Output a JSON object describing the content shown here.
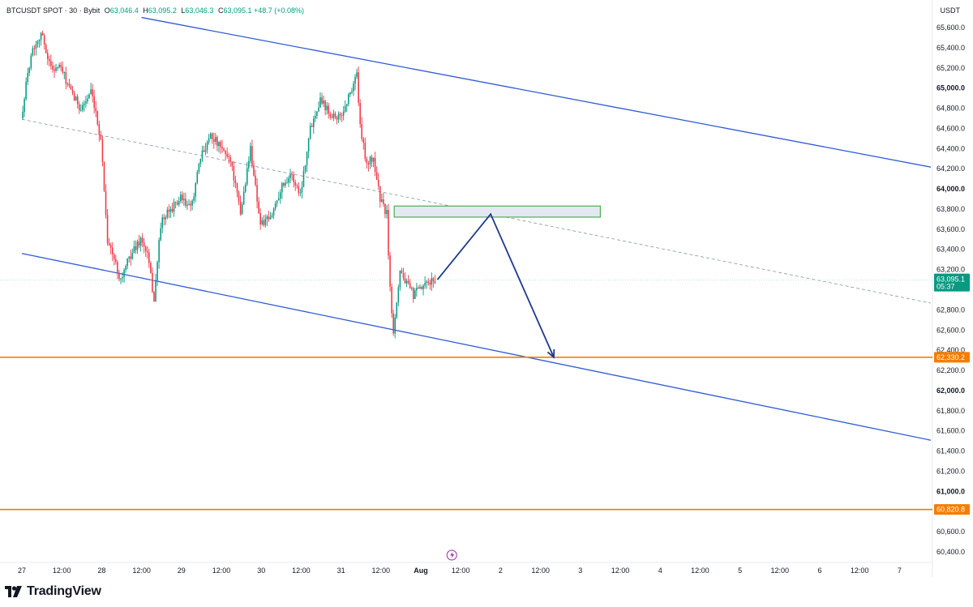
{
  "header": {
    "symbol": "BTCUSDT SPOT · 30 · Bybit",
    "open_label": "O",
    "open": "63,046.4",
    "high_label": "H",
    "high": "63,095.2",
    "low_label": "L",
    "low": "63,046.3",
    "close_label": "C",
    "close": "63,095.1",
    "change": "+48.7 (+0.08%)"
  },
  "currency": "USDT",
  "brand": "TradingView",
  "colors": {
    "up": "#089981",
    "down": "#f23645",
    "channel": "#2f5bd3",
    "level": "#f57c00",
    "arrow": "#1e3a8a",
    "zone_border": "#4caf50",
    "zone_fill": "#e3e8f2",
    "price_tag": "#089981"
  },
  "chart_data": {
    "type": "candlestick",
    "symbol": "BTCUSDT",
    "timeframe_minutes": 30,
    "y_ticks": [
      {
        "value": 65600,
        "label": "65,600.0"
      },
      {
        "value": 65400,
        "label": "65,400.0"
      },
      {
        "value": 65200,
        "label": "65,200.0"
      },
      {
        "value": 65000,
        "label": "65,000.0",
        "bold": true
      },
      {
        "value": 64800,
        "label": "64,800.0"
      },
      {
        "value": 64600,
        "label": "64,600.0"
      },
      {
        "value": 64400,
        "label": "64,400.0"
      },
      {
        "value": 64200,
        "label": "64,200.0"
      },
      {
        "value": 64000,
        "label": "64,000.0",
        "bold": true
      },
      {
        "value": 63800,
        "label": "63,800.0"
      },
      {
        "value": 63600,
        "label": "63,600.0"
      },
      {
        "value": 63400,
        "label": "63,400.0"
      },
      {
        "value": 63200,
        "label": "63,200.0"
      },
      {
        "value": 62800,
        "label": "62,800.0"
      },
      {
        "value": 62600,
        "label": "62,600.0"
      },
      {
        "value": 62400,
        "label": "62,400.0"
      },
      {
        "value": 62200,
        "label": "62,200.0"
      },
      {
        "value": 62000,
        "label": "62,000.0",
        "bold": true
      },
      {
        "value": 61800,
        "label": "61,800.0"
      },
      {
        "value": 61600,
        "label": "61,600.0"
      },
      {
        "value": 61400,
        "label": "61,400.0"
      },
      {
        "value": 61200,
        "label": "61,200.0"
      },
      {
        "value": 61000,
        "label": "61,000.0",
        "bold": true
      },
      {
        "value": 60800,
        "label": "60,800.0"
      },
      {
        "value": 60600,
        "label": "60,600.0"
      },
      {
        "value": 60400,
        "label": "60,400.0"
      }
    ],
    "x_ticks": [
      {
        "time": "Jul 27 00:00",
        "label": "27"
      },
      {
        "time": "Jul 27 12:00",
        "label": "12:00"
      },
      {
        "time": "Jul 28 00:00",
        "label": "28"
      },
      {
        "time": "Jul 28 12:00",
        "label": "12:00"
      },
      {
        "time": "Jul 29 00:00",
        "label": "29"
      },
      {
        "time": "Jul 29 12:00",
        "label": "12:00"
      },
      {
        "time": "Jul 30 00:00",
        "label": "30"
      },
      {
        "time": "Jul 30 12:00",
        "label": "12:00"
      },
      {
        "time": "Jul 31 00:00",
        "label": "31"
      },
      {
        "time": "Jul 31 12:00",
        "label": "12:00"
      },
      {
        "time": "Aug 1 00:00",
        "label": "Aug",
        "bold": true
      },
      {
        "time": "Aug 1 12:00",
        "label": "12:00"
      },
      {
        "time": "Aug 2 00:00",
        "label": "2"
      },
      {
        "time": "Aug 2 12:00",
        "label": "12:00"
      },
      {
        "time": "Aug 3 00:00",
        "label": "3"
      },
      {
        "time": "Aug 3 12:00",
        "label": "12:00"
      },
      {
        "time": "Aug 4 00:00",
        "label": "4"
      },
      {
        "time": "Aug 4 12:00",
        "label": "12:00"
      },
      {
        "time": "Aug 5 00:00",
        "label": "5"
      },
      {
        "time": "Aug 5 12:00",
        "label": "12:00"
      },
      {
        "time": "Aug 6 00:00",
        "label": "6"
      },
      {
        "time": "Aug 6 12:00",
        "label": "12:00"
      },
      {
        "time": "Aug 7 00:00",
        "label": "7"
      }
    ],
    "price_path": [
      [
        "Jul 27 00:00",
        64700
      ],
      [
        "Jul 27 03:00",
        65350
      ],
      [
        "Jul 27 06:00",
        65550
      ],
      [
        "Jul 27 09:00",
        65200
      ],
      [
        "Jul 27 12:00",
        65200
      ],
      [
        "Jul 27 15:00",
        64950
      ],
      [
        "Jul 27 18:00",
        64800
      ],
      [
        "Jul 27 21:00",
        64950
      ],
      [
        "Jul 28 00:00",
        64500
      ],
      [
        "Jul 28 02:00",
        63500
      ],
      [
        "Jul 28 04:00",
        63300
      ],
      [
        "Jul 28 06:00",
        63100
      ],
      [
        "Jul 28 09:00",
        63350
      ],
      [
        "Jul 28 12:00",
        63500
      ],
      [
        "Jul 28 14:00",
        63350
      ],
      [
        "Jul 28 16:00",
        62900
      ],
      [
        "Jul 28 18:00",
        63650
      ],
      [
        "Jul 28 21:00",
        63800
      ],
      [
        "Jul 29 00:00",
        63900
      ],
      [
        "Jul 29 03:00",
        63800
      ],
      [
        "Jul 29 06:00",
        64300
      ],
      [
        "Jul 29 09:00",
        64550
      ],
      [
        "Jul 29 12:00",
        64400
      ],
      [
        "Jul 29 15:00",
        64300
      ],
      [
        "Jul 29 18:00",
        63750
      ],
      [
        "Jul 29 21:00",
        64400
      ],
      [
        "Jul 30 00:00",
        63650
      ],
      [
        "Jul 30 03:00",
        63700
      ],
      [
        "Jul 30 06:00",
        64000
      ],
      [
        "Jul 30 09:00",
        64150
      ],
      [
        "Jul 30 12:00",
        63950
      ],
      [
        "Jul 30 15:00",
        64600
      ],
      [
        "Jul 30 18:00",
        64900
      ],
      [
        "Jul 30 21:00",
        64750
      ],
      [
        "Jul 31 00:00",
        64700
      ],
      [
        "Jul 31 03:00",
        64950
      ],
      [
        "Jul 31 05:00",
        65150
      ],
      [
        "Jul 31 06:00",
        64600
      ],
      [
        "Jul 31 08:00",
        64250
      ],
      [
        "Jul 31 10:00",
        64300
      ],
      [
        "Jul 31 12:00",
        63900
      ],
      [
        "Jul 31 14:00",
        63750
      ],
      [
        "Jul 31 15:00",
        63000
      ],
      [
        "Jul 31 16:00",
        62600
      ],
      [
        "Jul 31 18:00",
        63200
      ],
      [
        "Jul 31 20:00",
        63050
      ],
      [
        "Jul 31 22:00",
        62950
      ],
      [
        "Aug 1 00:00",
        63000
      ],
      [
        "Aug 1 04:00",
        63095
      ]
    ],
    "channel_upper": [
      [
        "Jul 28 12:00",
        65700
      ],
      [
        "Aug 7 12:00",
        64200
      ]
    ],
    "channel_lower": [
      [
        "Jul 27 00:00",
        63360
      ],
      [
        "Aug 7 12:00",
        61490
      ]
    ],
    "channel_midline": [
      [
        "Jul 27 00:00",
        64690
      ],
      [
        "Aug 7 12:00",
        62850
      ]
    ],
    "supply_zone": {
      "from": "Jul 31 16:00",
      "to": "Aug 3 06:00",
      "top": 63830,
      "bottom": 63720
    },
    "projection_path": [
      [
        "Aug 1 05:00",
        63100
      ],
      [
        "Aug 1 21:00",
        63750
      ],
      [
        "Aug 2 16:00",
        62330
      ]
    ],
    "levels": [
      {
        "value": 62330.2,
        "label": "62,330.2",
        "color": "#f57c00"
      },
      {
        "value": 60820.8,
        "label": "60,820.8",
        "color": "#f57c00"
      }
    ],
    "last_price": {
      "value": 63095.1,
      "label": "63,095.1",
      "countdown": "05:37"
    },
    "ylim": [
      60300,
      65650
    ]
  }
}
